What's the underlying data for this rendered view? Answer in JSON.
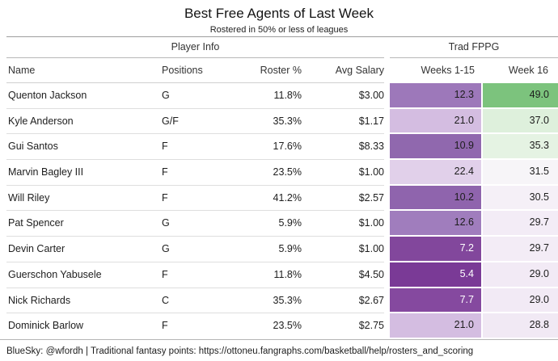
{
  "title": "Best Free Agents of Last Week",
  "subtitle": "Rostered in 50% or less of leagues",
  "table": {
    "groups": {
      "player_info": "Player Info",
      "trad_fppg": "Trad FPPG"
    },
    "columns": {
      "name": "Name",
      "positions": "Positions",
      "roster_pct": "Roster %",
      "avg_salary": "Avg Salary",
      "weeks_1_15": "Weeks 1-15",
      "week_16": "Week 16"
    },
    "rows": [
      {
        "name": "Quenton Jackson",
        "positions": "G",
        "roster_pct": "11.8%",
        "avg_salary": "$3.00",
        "weeks_1_15": "12.3",
        "week_16": "49.0",
        "weeks_bg": "#9d78ba",
        "weeks_fg": "#1d1d1d",
        "w16_bg": "#7cc37d",
        "w16_fg": "#1d1d1d"
      },
      {
        "name": "Kyle Anderson",
        "positions": "G/F",
        "roster_pct": "35.3%",
        "avg_salary": "$1.17",
        "weeks_1_15": "21.0",
        "week_16": "37.0",
        "weeks_bg": "#d4bde1",
        "weeks_fg": "#1d1d1d",
        "w16_bg": "#def0dc",
        "w16_fg": "#1d1d1d"
      },
      {
        "name": "Gui Santos",
        "positions": "F",
        "roster_pct": "17.6%",
        "avg_salary": "$8.33",
        "weeks_1_15": "10.9",
        "week_16": "35.3",
        "weeks_bg": "#9068ae",
        "weeks_fg": "#1d1d1d",
        "w16_bg": "#e5f3e3",
        "w16_fg": "#1d1d1d"
      },
      {
        "name": "Marvin Bagley III",
        "positions": "F",
        "roster_pct": "23.5%",
        "avg_salary": "$1.00",
        "weeks_1_15": "22.4",
        "week_16": "31.5",
        "weeks_bg": "#e1d0ea",
        "weeks_fg": "#1d1d1d",
        "w16_bg": "#f7f5f8",
        "w16_fg": "#1d1d1d"
      },
      {
        "name": "Will Riley",
        "positions": "F",
        "roster_pct": "41.2%",
        "avg_salary": "$2.57",
        "weeks_1_15": "10.2",
        "week_16": "30.5",
        "weeks_bg": "#8f64ad",
        "weeks_fg": "#1d1d1d",
        "w16_bg": "#f5f0f7",
        "w16_fg": "#1d1d1d"
      },
      {
        "name": "Pat Spencer",
        "positions": "G",
        "roster_pct": "5.9%",
        "avg_salary": "$1.00",
        "weeks_1_15": "12.6",
        "week_16": "29.7",
        "weeks_bg": "#a07dbd",
        "weeks_fg": "#1d1d1d",
        "w16_bg": "#f3ecf6",
        "w16_fg": "#1d1d1d"
      },
      {
        "name": "Devin Carter",
        "positions": "G",
        "roster_pct": "5.9%",
        "avg_salary": "$1.00",
        "weeks_1_15": "7.2",
        "week_16": "29.7",
        "weeks_bg": "#82479c",
        "weeks_fg": "#ffffff",
        "w16_bg": "#f3ecf6",
        "w16_fg": "#1d1d1d"
      },
      {
        "name": "Guerschon Yabusele",
        "positions": "F",
        "roster_pct": "11.8%",
        "avg_salary": "$4.50",
        "weeks_1_15": "5.4",
        "week_16": "29.0",
        "weeks_bg": "#7a3a96",
        "weeks_fg": "#ffffff",
        "w16_bg": "#f2eaf5",
        "w16_fg": "#1d1d1d"
      },
      {
        "name": "Nick Richards",
        "positions": "C",
        "roster_pct": "35.3%",
        "avg_salary": "$2.67",
        "weeks_1_15": "7.7",
        "week_16": "29.0",
        "weeks_bg": "#85499f",
        "weeks_fg": "#ffffff",
        "w16_bg": "#f2eaf5",
        "w16_fg": "#1d1d1d"
      },
      {
        "name": "Dominick Barlow",
        "positions": "F",
        "roster_pct": "23.5%",
        "avg_salary": "$2.75",
        "weeks_1_15": "21.0",
        "week_16": "28.8",
        "weeks_bg": "#d4bde1",
        "weeks_fg": "#1d1d1d",
        "w16_bg": "#f1e9f4",
        "w16_fg": "#1d1d1d"
      }
    ]
  },
  "footer": "BlueSky: @wfordh | Traditional fantasy points: https://ottoneu.fangraphs.com/basketball/help/rosters_and_scoring",
  "colors": {
    "heatmap_low_purple": "#7a3a96",
    "heatmap_high_green": "#7cc37d",
    "rule_dark": "#9e9e9e",
    "rule_light": "#dedede"
  },
  "chart_data": {
    "type": "table",
    "title": "Best Free Agents of Last Week",
    "subtitle": "Rostered in 50% or less of leagues",
    "column_groups": [
      "Player Info",
      "Trad FPPG"
    ],
    "columns": [
      "Name",
      "Positions",
      "Roster %",
      "Avg Salary",
      "Weeks 1-15",
      "Week 16"
    ],
    "rows": [
      [
        "Quenton Jackson",
        "G",
        11.8,
        3.0,
        12.3,
        49.0
      ],
      [
        "Kyle Anderson",
        "G/F",
        35.3,
        1.17,
        21.0,
        37.0
      ],
      [
        "Gui Santos",
        "F",
        17.6,
        8.33,
        10.9,
        35.3
      ],
      [
        "Marvin Bagley III",
        "F",
        23.5,
        1.0,
        22.4,
        31.5
      ],
      [
        "Will Riley",
        "F",
        41.2,
        2.57,
        10.2,
        30.5
      ],
      [
        "Pat Spencer",
        "G",
        5.9,
        1.0,
        12.6,
        29.7
      ],
      [
        "Devin Carter",
        "G",
        5.9,
        1.0,
        7.2,
        29.7
      ],
      [
        "Guerschon Yabusele",
        "F",
        11.8,
        4.5,
        5.4,
        29.0
      ],
      [
        "Nick Richards",
        "C",
        35.3,
        2.67,
        7.7,
        29.0
      ],
      [
        "Dominick Barlow",
        "F",
        23.5,
        2.75,
        21.0,
        28.8
      ]
    ],
    "color_encoding": "Weeks 1-15 and Week 16 cells are heatmap-shaded from dark purple (low FPPG) through white to green (high FPPG)",
    "footer": "BlueSky: @wfordh | Traditional fantasy points: https://ottoneu.fangraphs.com/basketball/help/rosters_and_scoring"
  }
}
